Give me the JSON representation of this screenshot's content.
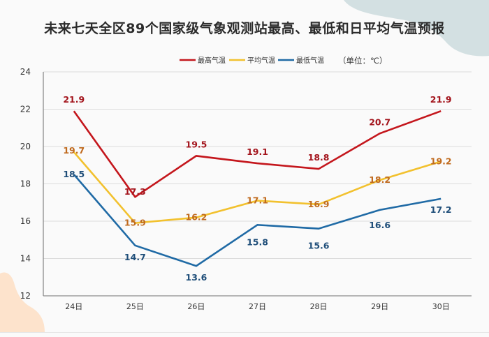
{
  "title": "未来七天全区89个国家级气象观测站最高、最低和日平均气温预报",
  "unit_label": "（单位：℃）",
  "colors": {
    "background": "#fafafa",
    "blob_top_right": "#d3e0e2",
    "blob_bottom_left": "#fde3cc",
    "grid": "#dcdcdc",
    "axis": "#8c8c8c"
  },
  "chart_data": {
    "type": "line",
    "title": "未来七天全区89个国家级气象观测站最高、最低和日平均气温预报",
    "xlabel": "",
    "ylabel": "",
    "unit": "（单位：℃）",
    "categories": [
      "24日",
      "25日",
      "26日",
      "27日",
      "28日",
      "29日",
      "30日"
    ],
    "ylim": [
      12,
      24
    ],
    "yticks": [
      "12",
      "14",
      "16",
      "18",
      "20",
      "22",
      "24"
    ],
    "ytick_values": [
      12,
      14,
      16,
      18,
      20,
      22,
      24
    ],
    "grid": true,
    "legend_position": "top-center",
    "series": [
      {
        "name": "最高气温",
        "key": "max",
        "color": "#c4161c",
        "label_color": "#a3141c",
        "values": [
          21.9,
          17.3,
          19.5,
          19.1,
          18.8,
          20.7,
          21.9
        ],
        "labels": [
          "21.9",
          "17.3",
          "19.5",
          "19.1",
          "18.8",
          "20.7",
          "21.9"
        ]
      },
      {
        "name": "平均气温",
        "key": "avg",
        "color": "#f2c12e",
        "label_color": "#c06a1e",
        "values": [
          19.7,
          15.9,
          16.2,
          17.1,
          16.9,
          18.2,
          19.2
        ],
        "labels": [
          "19.7",
          "15.9",
          "16.2",
          "17.1",
          "16.9",
          "18.2",
          "19.2"
        ]
      },
      {
        "name": "最低气温",
        "key": "min",
        "color": "#1f6aa5",
        "label_color": "#1f4e79",
        "values": [
          18.5,
          14.7,
          13.6,
          15.8,
          15.6,
          16.6,
          17.2
        ],
        "labels": [
          "18.5",
          "14.7",
          "13.6",
          "15.8",
          "15.6",
          "16.6",
          "17.2"
        ]
      }
    ]
  }
}
